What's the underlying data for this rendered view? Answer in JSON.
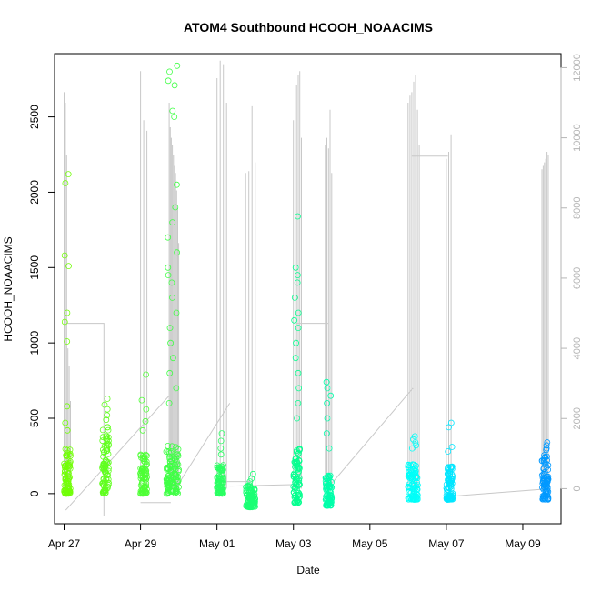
{
  "chart_data": {
    "type": "scatter",
    "title": "ATOM4 Southbound HCOOH_NOAACIMS",
    "xlabel": "Date",
    "ylabel": "HCOOH_NOAACIMS",
    "x_ticks": [
      "Apr 27",
      "Apr 29",
      "May 01",
      "May 03",
      "May 05",
      "May 07",
      "May 09"
    ],
    "xlim": [
      "2018-04-26T18:00",
      "2018-05-10T00:00"
    ],
    "ylim": [
      -200,
      2920
    ],
    "y_ticks": [
      0,
      500,
      1000,
      1500,
      2000,
      2500
    ],
    "y2_ticks": [
      0,
      2000,
      4000,
      6000,
      8000,
      10000,
      12000
    ],
    "y2lim": [
      -1000,
      12400
    ],
    "grid": false,
    "series": [
      {
        "type": "points",
        "marker": "open-circle",
        "color_by": "time",
        "flights": [
          {
            "date": "2018-04-27",
            "start_h": 0,
            "end_h": 4,
            "low": 0,
            "typ_high": 300,
            "peak_values": [
              2120,
              2060,
              1580,
              1510,
              1200,
              1140,
              1010,
              580,
              470,
              420
            ]
          },
          {
            "date": "2018-04-28",
            "start_h": 0,
            "end_h": 4,
            "low": 0,
            "typ_high": 450,
            "peak_values": [
              630,
              590,
              560,
              520,
              490
            ]
          },
          {
            "date": "2018-04-29",
            "start_h": 0,
            "end_h": 4,
            "low": 0,
            "typ_high": 260,
            "peak_values": [
              790,
              620,
              560,
              480,
              420
            ]
          },
          {
            "date": "2018-04-29",
            "start_h": 16,
            "end_h": 24,
            "low": 0,
            "typ_high": 320,
            "peak_values": [
              2840,
              2800,
              2740,
              2710,
              2540,
              2500,
              2050,
              1900,
              1800,
              1700,
              1600,
              1500,
              1450,
              1400,
              1300,
              1200,
              1100,
              1000,
              900,
              800,
              700,
              600
            ]
          },
          {
            "date": "2018-05-01",
            "start_h": 0,
            "end_h": 4,
            "low": 0,
            "typ_high": 190,
            "peak_values": [
              400,
              350,
              300,
              260
            ]
          },
          {
            "date": "2018-05-01",
            "start_h": 18,
            "end_h": 24,
            "low": -90,
            "typ_high": 60,
            "peak_values": [
              130,
              100,
              80
            ]
          },
          {
            "date": "2018-05-03",
            "start_h": 0,
            "end_h": 4,
            "low": -60,
            "typ_high": 300,
            "peak_values": [
              1840,
              1500,
              1450,
              1400,
              1300,
              1200,
              1150,
              1100,
              1000,
              900,
              800,
              700,
              600,
              500
            ]
          },
          {
            "date": "2018-05-03",
            "start_h": 20,
            "end_h": 24,
            "low": -80,
            "typ_high": 120,
            "peak_values": [
              740,
              700,
              650,
              600,
              500,
              400,
              300
            ]
          },
          {
            "date": "2018-05-06",
            "start_h": 0,
            "end_h": 6,
            "low": -40,
            "typ_high": 200,
            "peak_values": [
              380,
              360,
              340,
              320,
              300
            ]
          },
          {
            "date": "2018-05-07",
            "start_h": 0,
            "end_h": 4,
            "low": -40,
            "typ_high": 180,
            "peak_values": [
              470,
              440,
              310,
              280
            ]
          },
          {
            "date": "2018-05-09",
            "start_h": 12,
            "end_h": 16,
            "low": -40,
            "typ_high": 260,
            "peak_values": [
              340,
              320,
              300,
              290
            ]
          }
        ]
      },
      {
        "type": "line",
        "axis": "right",
        "color": "#c8c8c8",
        "spikes": [
          {
            "date": "2018-04-27",
            "start_h": 0,
            "end_h": 4,
            "base": 0,
            "peaks": [
              11300,
              11000,
              9500,
              4000,
              3500,
              2500
            ]
          },
          {
            "date": "2018-04-29",
            "start_h": 0,
            "end_h": 4,
            "base": 0,
            "peaks": [
              11900,
              10500,
              10200
            ]
          },
          {
            "date": "2018-04-29",
            "start_h": 18,
            "end_h": 24,
            "base": 0,
            "peaks": [
              11000,
              10300,
              10000,
              9800,
              9500,
              9200,
              9000,
              8500,
              8000,
              7000
            ]
          },
          {
            "date": "2018-05-01",
            "start_h": 0,
            "end_h": 6,
            "base": 0,
            "peaks": [
              11700,
              12200,
              12100,
              11000
            ]
          },
          {
            "date": "2018-05-01",
            "start_h": 18,
            "end_h": 24,
            "base": 0,
            "peaks": [
              9000,
              9050,
              10900,
              9300
            ]
          },
          {
            "date": "2018-05-03",
            "start_h": 0,
            "end_h": 5,
            "base": 0,
            "peaks": [
              10500,
              10300,
              11500,
              11800,
              11900,
              10000
            ]
          },
          {
            "date": "2018-05-03",
            "start_h": 20,
            "end_h": 24,
            "base": 0,
            "peaks": [
              9800,
              10000,
              9700,
              10800,
              9000
            ]
          },
          {
            "date": "2018-05-06",
            "start_h": 0,
            "end_h": 7,
            "base": 0,
            "peaks": [
              11000,
              11200,
              11300,
              11600,
              11800,
              10800,
              9800
            ]
          },
          {
            "date": "2018-05-07",
            "start_h": 0,
            "end_h": 3,
            "base": 0,
            "peaks": [
              9400,
              9600,
              10100
            ]
          },
          {
            "date": "2018-05-09",
            "start_h": 12,
            "end_h": 16,
            "base": 0,
            "peaks": [
              9100,
              9200,
              9300,
              9400,
              9600,
              9500
            ]
          }
        ],
        "connectors": [
          [
            [
              "2018-04-27T02",
              1130
            ],
            [
              "2018-04-28T01",
              1130
            ],
            [
              "2018-04-28T01",
              -150
            ]
          ],
          [
            [
              "2018-04-27T01",
              -110
            ],
            [
              "2018-04-29T18",
              650
            ]
          ],
          [
            [
              "2018-04-29T00",
              -60
            ],
            [
              "2018-04-29T19",
              -60
            ]
          ],
          [
            [
              "2018-04-29T20",
              0
            ],
            [
              "2018-05-01T08",
              600
            ]
          ],
          [
            [
              "2018-05-01T00",
              80
            ],
            [
              "2018-05-01T21",
              80
            ]
          ],
          [
            [
              "2018-05-01T08",
              50
            ],
            [
              "2018-05-03T02",
              60
            ]
          ],
          [
            [
              "2018-05-03T02",
              1130
            ],
            [
              "2018-05-03T22",
              1130
            ]
          ],
          [
            [
              "2018-05-03T21",
              30
            ],
            [
              "2018-05-06T03",
              700
            ]
          ],
          [
            [
              "2018-05-06T02",
              2240
            ],
            [
              "2018-05-07T01",
              2240
            ]
          ],
          [
            [
              "2018-05-07T00",
              -20
            ],
            [
              "2018-05-09T14",
              30
            ]
          ]
        ]
      }
    ]
  }
}
